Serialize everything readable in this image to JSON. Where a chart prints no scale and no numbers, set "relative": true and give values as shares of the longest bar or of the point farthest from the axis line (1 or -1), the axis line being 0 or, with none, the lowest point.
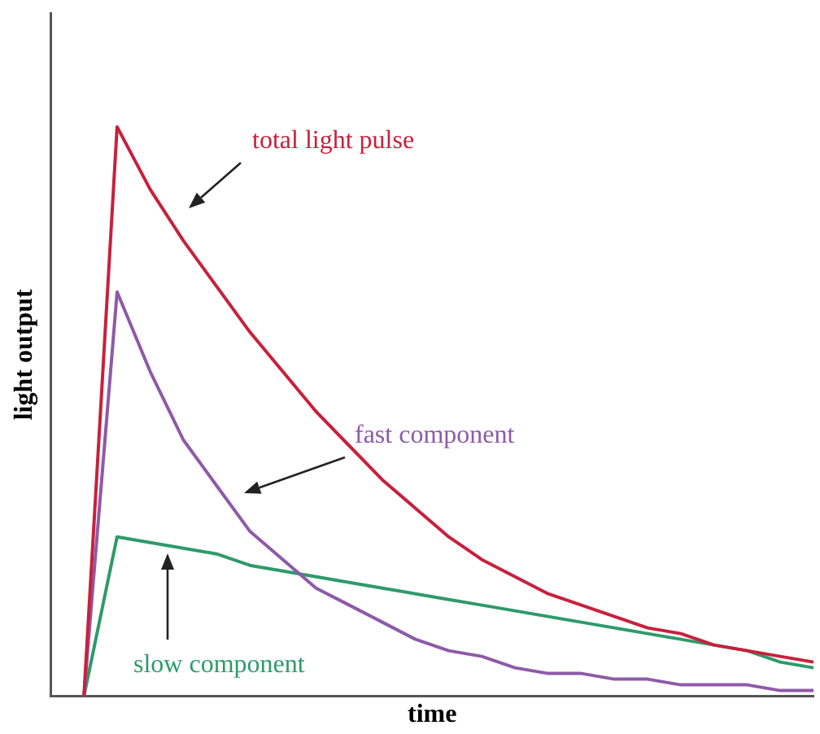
{
  "chart_data": {
    "type": "line",
    "relative": true,
    "xlabel": "time",
    "ylabel": "light output",
    "tick_labels": false,
    "legend": false,
    "grid": false,
    "categories": [
      null,
      null,
      null,
      null,
      null,
      null,
      null,
      null,
      null,
      null,
      null,
      null,
      null,
      null,
      null,
      null,
      null,
      null,
      null,
      null,
      null,
      null,
      null,
      null
    ],
    "series": [
      {
        "name": "total light pulse",
        "color": "#c8203c",
        "values": [
          null,
          0,
          1,
          0.89,
          0.8,
          0.72,
          0.64,
          0.57,
          0.5,
          0.44,
          0.38,
          0.33,
          0.28,
          0.24,
          0.21,
          0.18,
          0.16,
          0.14,
          0.12,
          0.11,
          0.09,
          0.08,
          0.07,
          0.06
        ]
      },
      {
        "name": "fast component",
        "color": "#8e5aa8",
        "values": [
          null,
          0,
          0.71,
          0.57,
          0.45,
          0.37,
          0.29,
          0.24,
          0.19,
          0.16,
          0.13,
          0.1,
          0.08,
          0.07,
          0.05,
          0.04,
          0.04,
          0.03,
          0.03,
          0.02,
          0.02,
          0.02,
          0.01,
          0.01
        ]
      },
      {
        "name": "slow component",
        "color": "#2e9a6a",
        "values": [
          null,
          0,
          0.28,
          0.27,
          0.26,
          0.25,
          0.23,
          0.22,
          0.21,
          0.2,
          0.19,
          0.18,
          0.17,
          0.16,
          0.15,
          0.14,
          0.13,
          0.12,
          0.11,
          0.1,
          0.09,
          0.08,
          0.06,
          0.05
        ]
      }
    ]
  }
}
